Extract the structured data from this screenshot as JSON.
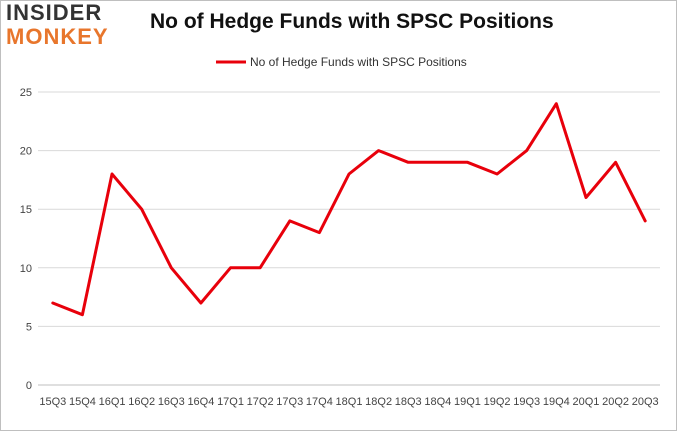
{
  "logo": {
    "line1": "INSIDER",
    "line2": "MONKEY"
  },
  "chart_data": {
    "type": "line",
    "title": "No of Hedge Funds with SPSC Positions",
    "xlabel": "",
    "ylabel": "",
    "categories": [
      "15Q3",
      "15Q4",
      "16Q1",
      "16Q2",
      "16Q3",
      "16Q4",
      "17Q1",
      "17Q2",
      "17Q3",
      "17Q4",
      "18Q1",
      "18Q2",
      "18Q3",
      "18Q4",
      "19Q1",
      "19Q2",
      "19Q3",
      "19Q4",
      "20Q1",
      "20Q2",
      "20Q3"
    ],
    "series": [
      {
        "name": "No of Hedge Funds with SPSC Positions",
        "values": [
          7,
          6,
          18,
          15,
          10,
          7,
          10,
          10,
          14,
          13,
          18,
          20,
          19,
          19,
          19,
          18,
          20,
          24,
          16,
          19,
          14
        ]
      }
    ],
    "ylim": [
      0,
      25
    ],
    "yticks": [
      0,
      5,
      10,
      15,
      20,
      25
    ],
    "grid": true,
    "legend": "top-center",
    "color": "#e8000b"
  }
}
